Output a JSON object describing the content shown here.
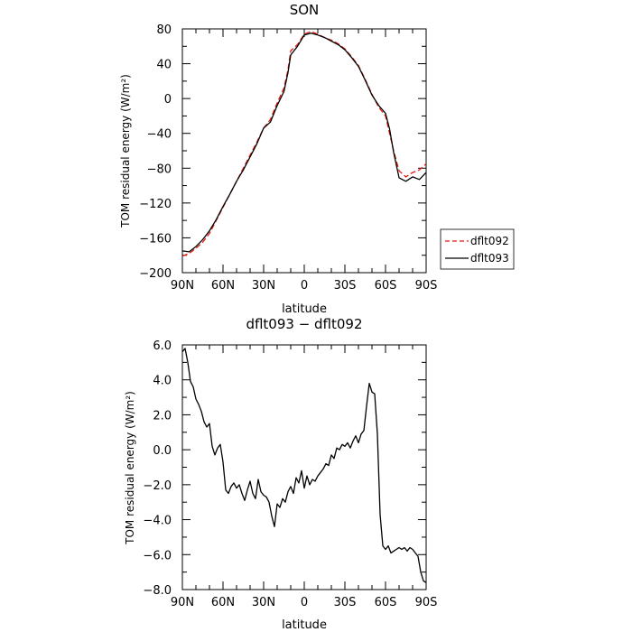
{
  "chart_data": [
    {
      "type": "line",
      "title": "SON",
      "xlabel": "latitude",
      "ylabel": "TOM residual energy (W/m²)",
      "x_ticks": [
        {
          "value": 90,
          "label": "90N"
        },
        {
          "value": 60,
          "label": "60N"
        },
        {
          "value": 30,
          "label": "30N"
        },
        {
          "value": 0,
          "label": "0"
        },
        {
          "value": -30,
          "label": "30S"
        },
        {
          "value": -60,
          "label": "60S"
        },
        {
          "value": -90,
          "label": "90S"
        }
      ],
      "xlim": [
        90,
        -90
      ],
      "ylim": [
        -200,
        80
      ],
      "y_ticks": [
        {
          "value": 80,
          "label": "80"
        },
        {
          "value": 40,
          "label": "40"
        },
        {
          "value": 0,
          "label": "0"
        },
        {
          "value": -40,
          "label": "−40"
        },
        {
          "value": -80,
          "label": "−80"
        },
        {
          "value": -120,
          "label": "−120"
        },
        {
          "value": -160,
          "label": "−160"
        },
        {
          "value": -200,
          "label": "−200"
        }
      ],
      "legend_position": "right, outside plot",
      "series": [
        {
          "name": "dflt092",
          "color": "#e8180c",
          "dash": "dashed",
          "x": [
            90,
            85,
            80,
            75,
            70,
            65,
            60,
            55,
            50,
            45,
            40,
            35,
            30,
            25,
            20,
            15,
            12,
            10,
            5,
            0,
            -5,
            -10,
            -15,
            -20,
            -25,
            -30,
            -35,
            -40,
            -45,
            -50,
            -55,
            -60,
            -63,
            -66,
            -70,
            -75,
            -80,
            -85,
            -90
          ],
          "y": [
            -181,
            -178,
            -172,
            -165,
            -155,
            -140,
            -125,
            -110,
            -95,
            -80,
            -65,
            -50,
            -34,
            -24,
            -5,
            12,
            33,
            55,
            62,
            74,
            77,
            74,
            70,
            67,
            63,
            57,
            48,
            38,
            22,
            5,
            -10,
            -20,
            -40,
            -60,
            -83,
            -90,
            -85,
            -82,
            -75
          ]
        },
        {
          "name": "dflt093",
          "color": "#000000",
          "dash": "solid",
          "x": [
            90,
            85,
            80,
            75,
            70,
            65,
            60,
            55,
            50,
            45,
            40,
            35,
            30,
            25,
            20,
            15,
            12,
            10,
            5,
            0,
            -5,
            -10,
            -15,
            -20,
            -25,
            -30,
            -35,
            -40,
            -45,
            -50,
            -55,
            -60,
            -63,
            -66,
            -70,
            -75,
            -80,
            -85,
            -90
          ],
          "y": [
            -175,
            -176,
            -170,
            -162,
            -152,
            -139,
            -124,
            -110,
            -95,
            -82,
            -67,
            -52,
            -34,
            -27,
            -8,
            8,
            30,
            50,
            60,
            73,
            75,
            73,
            70,
            66,
            62,
            56,
            47,
            37,
            21,
            4,
            -8,
            -17,
            -35,
            -62,
            -91,
            -95,
            -90,
            -93,
            -85
          ]
        }
      ]
    },
    {
      "type": "line",
      "title": "dflt093 − dflt092",
      "xlabel": "latitude",
      "ylabel": "TOM residual energy (W/m²)",
      "x_ticks": [
        {
          "value": 90,
          "label": "90N"
        },
        {
          "value": 60,
          "label": "60N"
        },
        {
          "value": 30,
          "label": "30N"
        },
        {
          "value": 0,
          "label": "0"
        },
        {
          "value": -30,
          "label": "30S"
        },
        {
          "value": -60,
          "label": "60S"
        },
        {
          "value": -90,
          "label": "90S"
        }
      ],
      "xlim": [
        90,
        -90
      ],
      "ylim": [
        -8,
        6
      ],
      "y_ticks": [
        {
          "value": 6,
          "label": "6.0"
        },
        {
          "value": 4,
          "label": "4.0"
        },
        {
          "value": 2,
          "label": "2.0"
        },
        {
          "value": 0,
          "label": "0.0"
        },
        {
          "value": -2,
          "label": "−2.0"
        },
        {
          "value": -4,
          "label": "−4.0"
        },
        {
          "value": -6,
          "label": "−6.0"
        },
        {
          "value": -8,
          "label": "−8.0"
        }
      ],
      "series": [
        {
          "name": "",
          "color": "#000000",
          "dash": "solid",
          "x": [
            90,
            88,
            86,
            84,
            82,
            80,
            78,
            76,
            74,
            72,
            70,
            68,
            66,
            64,
            62,
            60,
            58,
            56,
            54,
            52,
            50,
            48,
            46,
            44,
            42,
            40,
            38,
            36,
            34,
            32,
            30,
            28,
            26,
            24,
            22,
            20,
            18,
            16,
            14,
            12,
            10,
            8,
            6,
            4,
            2,
            0,
            -2,
            -4,
            -6,
            -8,
            -10,
            -12,
            -14,
            -16,
            -18,
            -20,
            -22,
            -24,
            -26,
            -28,
            -30,
            -32,
            -34,
            -36,
            -38,
            -40,
            -42,
            -44,
            -46,
            -48,
            -50,
            -52,
            -54,
            -56,
            -58,
            -60,
            -62,
            -64,
            -66,
            -68,
            -70,
            -72,
            -74,
            -76,
            -78,
            -80,
            -82,
            -84,
            -86,
            -88,
            -90
          ],
          "y": [
            5.6,
            5.8,
            5.0,
            3.9,
            3.6,
            2.9,
            2.6,
            2.2,
            1.6,
            1.3,
            1.5,
            0.2,
            -0.3,
            0.1,
            0.3,
            -0.7,
            -2.3,
            -2.5,
            -2.1,
            -1.9,
            -2.2,
            -2.0,
            -2.5,
            -2.9,
            -2.3,
            -1.8,
            -2.5,
            -2.8,
            -1.7,
            -2.4,
            -2.6,
            -2.7,
            -3.0,
            -3.8,
            -4.4,
            -3.1,
            -3.3,
            -2.8,
            -3.0,
            -2.4,
            -2.1,
            -2.5,
            -1.6,
            -1.9,
            -1.2,
            -2.2,
            -1.5,
            -2.0,
            -1.7,
            -1.8,
            -1.5,
            -1.3,
            -1.1,
            -0.8,
            -0.9,
            -0.3,
            -0.5,
            0.1,
            0.0,
            0.3,
            0.2,
            0.4,
            0.1,
            0.5,
            0.8,
            0.4,
            0.9,
            1.1,
            2.5,
            3.8,
            3.3,
            3.2,
            0.9,
            -3.7,
            -5.5,
            -5.7,
            -5.5,
            -5.9,
            -5.8,
            -5.7,
            -5.6,
            -5.7,
            -5.6,
            -5.8,
            -5.6,
            -5.7,
            -5.9,
            -6.1,
            -7.0,
            -7.5,
            -7.6
          ]
        }
      ]
    }
  ]
}
